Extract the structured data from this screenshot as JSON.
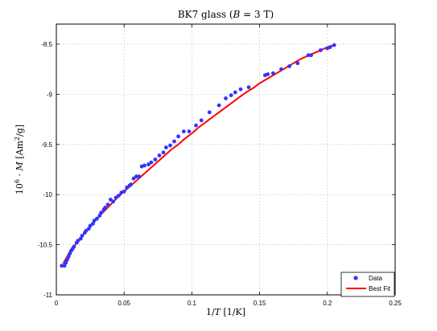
{
  "chart_data": {
    "type": "scatter",
    "title_parts": [
      "BK7 glass (",
      "B",
      " = 3 T)"
    ],
    "xlabel_parts": [
      "1/",
      "T",
      " [1/K]"
    ],
    "ylabel_parts": [
      "10",
      "6",
      " · ",
      "M",
      " [Am",
      "2",
      "/g]"
    ],
    "xlim": [
      0,
      0.25
    ],
    "ylim": [
      -11,
      -8.3
    ],
    "xticks": [
      0,
      0.05,
      0.1,
      0.15,
      0.2,
      0.25
    ],
    "xtick_labels": [
      "0",
      "0.05",
      "0.1",
      "0.15",
      "0.2",
      "0.25"
    ],
    "yticks": [
      -11,
      -10.5,
      -10,
      -9.5,
      -9,
      -8.5
    ],
    "ytick_labels": [
      "-11",
      "-10.5",
      "-10",
      "-9.5",
      "-9",
      "-8.5"
    ],
    "grid": true,
    "legend_position": "bottom-right",
    "series": [
      {
        "name": "Data",
        "kind": "points",
        "color": "#3333ff",
        "x": [
          0.004,
          0.006,
          0.007,
          0.008,
          0.009,
          0.01,
          0.011,
          0.012,
          0.013,
          0.015,
          0.016,
          0.018,
          0.019,
          0.021,
          0.022,
          0.024,
          0.025,
          0.027,
          0.028,
          0.03,
          0.032,
          0.033,
          0.035,
          0.036,
          0.038,
          0.04,
          0.042,
          0.044,
          0.046,
          0.048,
          0.05,
          0.052,
          0.054,
          0.055,
          0.057,
          0.059,
          0.061,
          0.063,
          0.065,
          0.068,
          0.07,
          0.073,
          0.076,
          0.079,
          0.081,
          0.084,
          0.087,
          0.09,
          0.094,
          0.098,
          0.103,
          0.107,
          0.113,
          0.12,
          0.125,
          0.129,
          0.132,
          0.136,
          0.142,
          0.154,
          0.156,
          0.16,
          0.166,
          0.172,
          0.178,
          0.186,
          0.188,
          0.195,
          0.2,
          0.202,
          0.205
        ],
        "y": [
          -10.71,
          -10.71,
          -10.68,
          -10.65,
          -10.62,
          -10.59,
          -10.56,
          -10.54,
          -10.52,
          -10.48,
          -10.46,
          -10.44,
          -10.41,
          -10.38,
          -10.36,
          -10.34,
          -10.31,
          -10.29,
          -10.26,
          -10.24,
          -10.21,
          -10.18,
          -10.15,
          -10.13,
          -10.1,
          -10.05,
          -10.07,
          -10.03,
          -10.01,
          -9.98,
          -9.97,
          -9.93,
          -9.91,
          -9.9,
          -9.84,
          -9.82,
          -9.82,
          -9.72,
          -9.71,
          -9.7,
          -9.68,
          -9.65,
          -9.61,
          -9.58,
          -9.53,
          -9.51,
          -9.47,
          -9.42,
          -9.37,
          -9.37,
          -9.31,
          -9.26,
          -9.18,
          -9.11,
          -9.04,
          -9.01,
          -8.98,
          -8.95,
          -8.93,
          -8.81,
          -8.8,
          -8.79,
          -8.75,
          -8.72,
          -8.69,
          -8.61,
          -8.61,
          -8.56,
          -8.54,
          -8.53,
          -8.51
        ]
      },
      {
        "name": "Best Fit",
        "kind": "line",
        "color": "#ff0000",
        "x": [
          0.005,
          0.01,
          0.015,
          0.02,
          0.025,
          0.03,
          0.035,
          0.04,
          0.045,
          0.05,
          0.055,
          0.06,
          0.065,
          0.07,
          0.075,
          0.08,
          0.085,
          0.09,
          0.095,
          0.1,
          0.105,
          0.11,
          0.115,
          0.12,
          0.125,
          0.13,
          0.135,
          0.14,
          0.145,
          0.15,
          0.155,
          0.16,
          0.165,
          0.17,
          0.175,
          0.18,
          0.185,
          0.19,
          0.195,
          0.2,
          0.205
        ],
        "y": [
          -10.69,
          -10.57,
          -10.48,
          -10.4,
          -10.32,
          -10.24,
          -10.17,
          -10.1,
          -10.03,
          -9.97,
          -9.91,
          -9.85,
          -9.79,
          -9.73,
          -9.67,
          -9.61,
          -9.55,
          -9.5,
          -9.44,
          -9.39,
          -9.33,
          -9.28,
          -9.23,
          -9.18,
          -9.13,
          -9.08,
          -9.03,
          -8.98,
          -8.94,
          -8.89,
          -8.85,
          -8.81,
          -8.77,
          -8.73,
          -8.69,
          -8.65,
          -8.62,
          -8.59,
          -8.56,
          -8.53,
          -8.51
        ]
      }
    ]
  }
}
